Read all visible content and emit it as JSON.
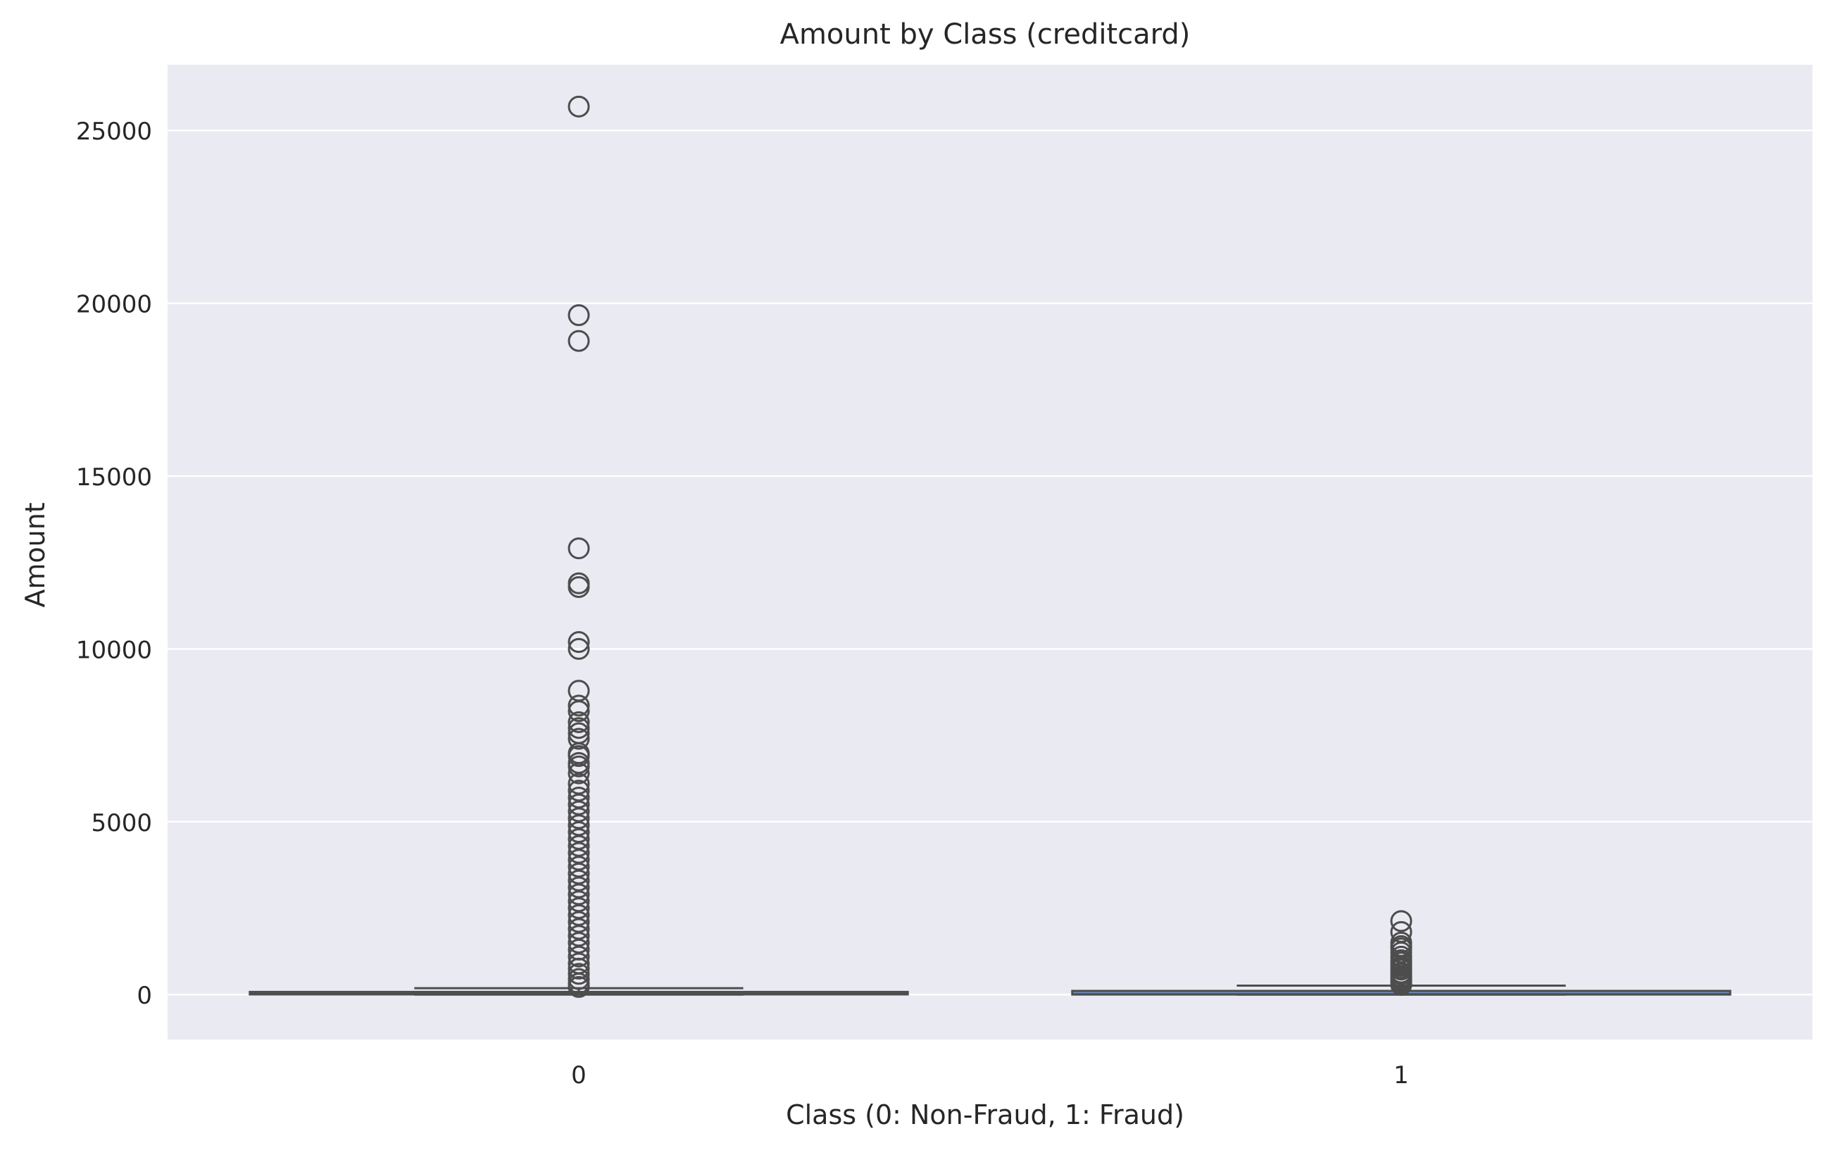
{
  "chart_data": {
    "type": "box",
    "title": "Amount by Class (creditcard)",
    "xlabel": "Class (0: Non-Fraud, 1: Fraud)",
    "ylabel": "Amount",
    "categories": [
      "0",
      "1"
    ],
    "ylim": [
      -1300,
      26900
    ],
    "yticks": [
      0,
      5000,
      10000,
      15000,
      20000,
      25000
    ],
    "ytick_labels": [
      "0",
      "5000",
      "10000",
      "15000",
      "20000",
      "25000"
    ],
    "grid": true,
    "background_color": "#eaeaf2",
    "grid_color": "#ffffff",
    "box_color": "#4d4d4d",
    "boxes": [
      {
        "category": "0",
        "whisker_low": 0,
        "q1": 5,
        "median": 22,
        "q3": 77,
        "whisker_high": 185,
        "outliers": [
          25691,
          19656,
          18910,
          12910,
          11898,
          11790,
          10200,
          10000,
          8790,
          8360,
          8200,
          7880,
          7712,
          7560,
          7400,
          6982,
          6900,
          6700,
          6600,
          6400,
          6100,
          5900,
          5700,
          5500,
          5300,
          5100,
          4900,
          4700,
          4500,
          4300,
          4100,
          3900,
          3700,
          3500,
          3300,
          3100,
          2900,
          2700,
          2500,
          2300,
          2100,
          1900,
          1700,
          1500,
          1300,
          1100,
          900,
          750,
          600,
          450,
          320,
          220
        ]
      },
      {
        "category": "1",
        "whisker_low": 0,
        "q1": 1,
        "median": 9,
        "q3": 106,
        "whisker_high": 260,
        "outliers": [
          2126,
          1810,
          1504,
          1402,
          1335,
          1218,
          1096,
          996,
          925,
          829,
          766,
          723,
          634,
          592,
          519,
          480,
          440,
          390,
          350,
          310,
          280
        ]
      }
    ]
  }
}
